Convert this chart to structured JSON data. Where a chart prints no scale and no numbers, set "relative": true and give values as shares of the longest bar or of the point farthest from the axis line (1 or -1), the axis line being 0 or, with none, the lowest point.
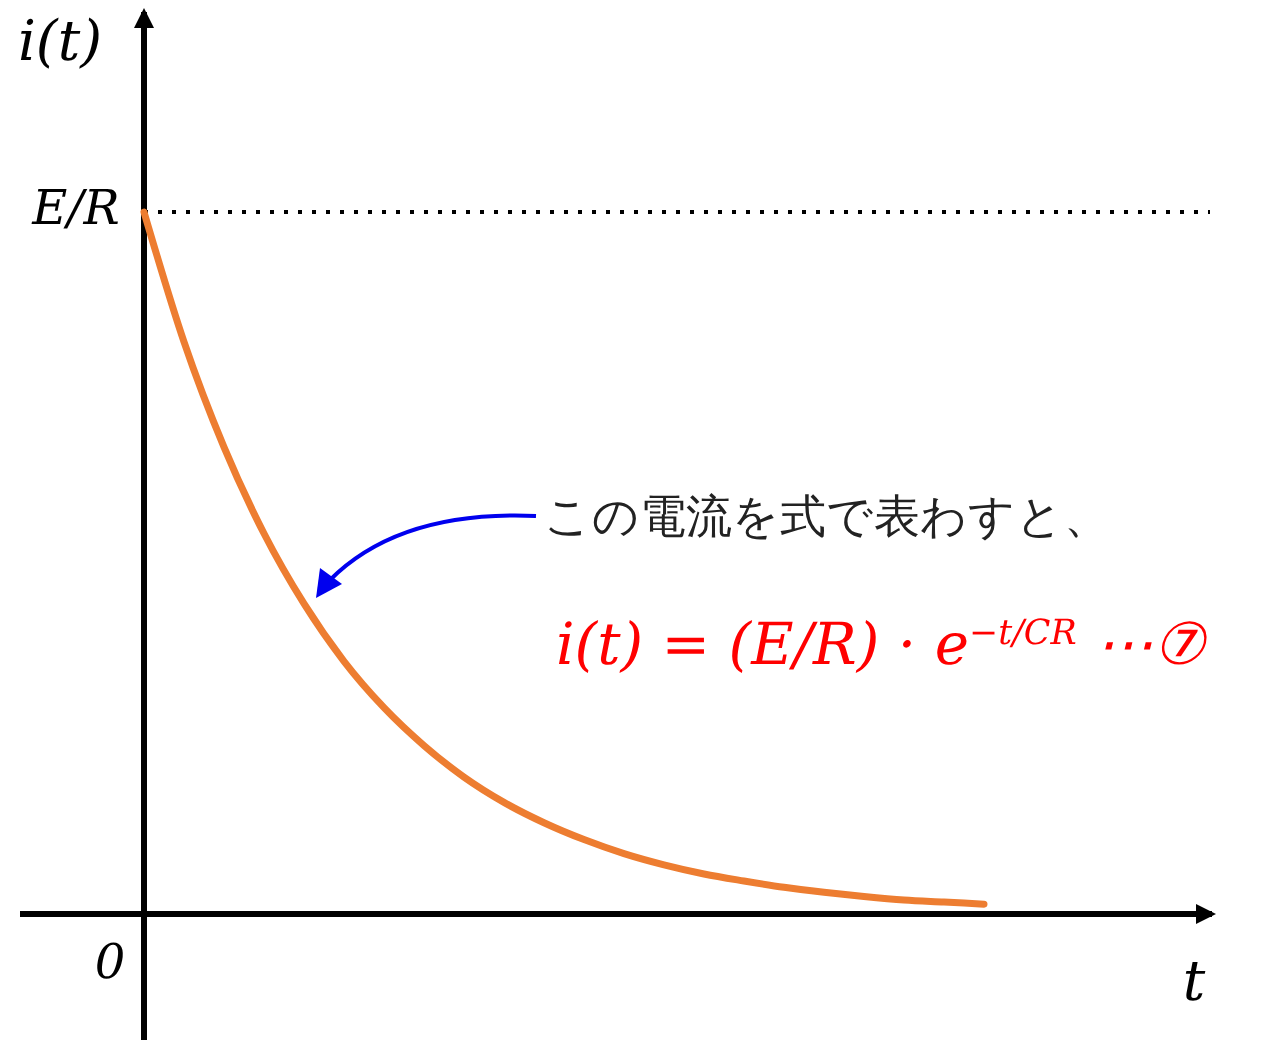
{
  "chart_data": {
    "type": "line",
    "xlabel": "t",
    "ylabel": "i(t)",
    "categories": [
      null,
      null,
      null,
      null,
      null,
      null,
      null,
      null,
      null,
      null,
      null,
      null,
      null,
      null,
      null,
      null,
      null,
      null,
      null,
      null,
      null,
      null,
      null,
      null,
      null,
      null,
      null
    ],
    "series": [
      {
        "color": "#ed7d31",
        "values": [
          1,
          0.815,
          0.665,
          0.542,
          0.442,
          0.36,
          0.294,
          0.24,
          0.195,
          0.159,
          0.13,
          0.106,
          0.086,
          0.07,
          0.057,
          0.047,
          0.038,
          0.031,
          0.025,
          0.02,
          0.017,
          0.014,
          null,
          null,
          null,
          null,
          null
        ]
      }
    ],
    "relative": true,
    "ref_lines": [
      {
        "axis": "y",
        "value": 1,
        "color": "#000000",
        "line_style": "dotted"
      }
    ],
    "annotations": [
      "この電流を式で表わすと、",
      "i(t) = (E/R) · e$^{−t/CR}$ ⋯⑦",
      "E/R",
      "0"
    ],
    "grid": false
  }
}
